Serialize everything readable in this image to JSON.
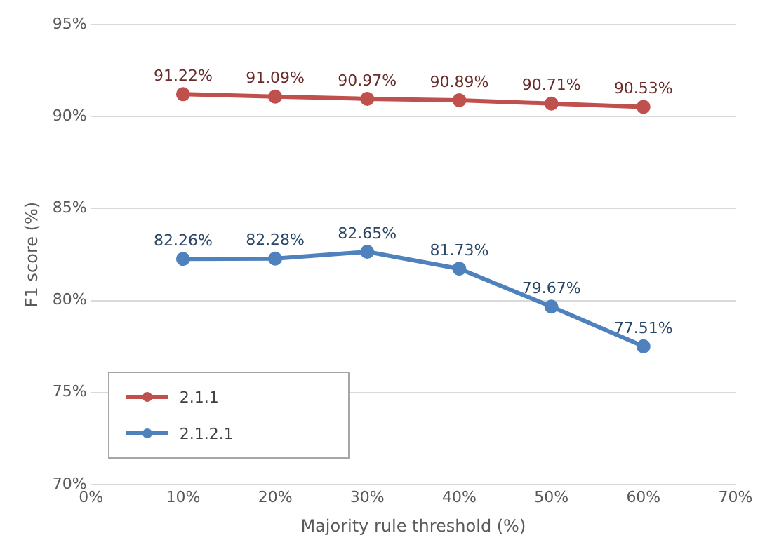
{
  "chart_data": {
    "type": "line",
    "xlabel": "Majority rule threshold (%)",
    "ylabel": "F1 score (%)",
    "x": [
      10,
      20,
      30,
      40,
      50,
      60
    ],
    "series": [
      {
        "name": "2.1.1",
        "color": "#c0504d",
        "values": [
          91.22,
          91.09,
          90.97,
          90.89,
          90.71,
          90.53
        ],
        "value_labels": [
          "91.22%",
          "91.09%",
          "90.97%",
          "90.89%",
          "90.71%",
          "90.53%"
        ]
      },
      {
        "name": "2.1.2.1",
        "color": "#4f81bd",
        "values": [
          82.26,
          82.28,
          82.65,
          81.73,
          79.67,
          77.51
        ],
        "value_labels": [
          "82.26%",
          "82.28%",
          "82.65%",
          "81.73%",
          "79.67%",
          "77.51%"
        ]
      }
    ],
    "xlim": [
      0,
      70
    ],
    "xticks": [
      {
        "value": 0,
        "label": "0%"
      },
      {
        "value": 10,
        "label": "10%"
      },
      {
        "value": 20,
        "label": "20%"
      },
      {
        "value": 30,
        "label": "30%"
      },
      {
        "value": 40,
        "label": "40%"
      },
      {
        "value": 50,
        "label": "50%"
      },
      {
        "value": 60,
        "label": "60%"
      },
      {
        "value": 70,
        "label": "70%"
      }
    ],
    "ylim": [
      70,
      95
    ],
    "yticks": [
      {
        "value": 70,
        "label": "70%"
      },
      {
        "value": 75,
        "label": "75%"
      },
      {
        "value": 80,
        "label": "80%"
      },
      {
        "value": 85,
        "label": "85%"
      },
      {
        "value": 90,
        "label": "90%"
      },
      {
        "value": 95,
        "label": "95%"
      }
    ],
    "grid": "y",
    "legend": "bottom left",
    "marker": "circle",
    "line_style": "solid"
  }
}
